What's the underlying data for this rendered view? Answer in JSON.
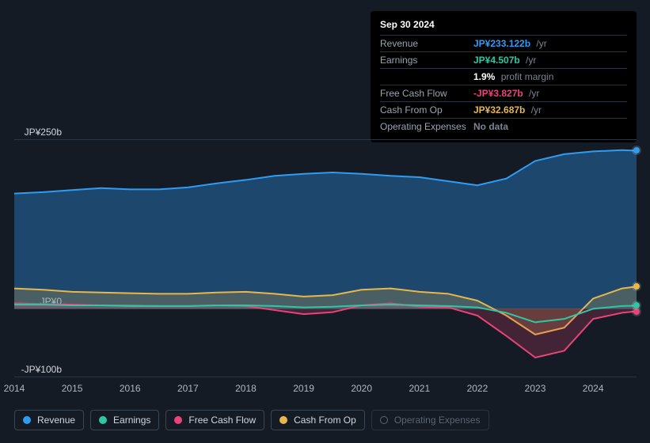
{
  "tooltip": {
    "date": "Sep 30 2024",
    "rows": [
      {
        "label": "Revenue",
        "value": "JP¥233.122b",
        "suffix": "/yr",
        "color": "#2f9cf4"
      },
      {
        "label": "Earnings",
        "value": "JP¥4.507b",
        "suffix": "/yr",
        "color": "#2ec7a6"
      },
      {
        "label": "",
        "value": "1.9%",
        "suffix": "profit margin",
        "color": "#ffffff"
      },
      {
        "label": "Free Cash Flow",
        "value": "-JP¥3.827b",
        "suffix": "/yr",
        "color": "#e8437a"
      },
      {
        "label": "Cash From Op",
        "value": "JP¥32.687b",
        "suffix": "/yr",
        "color": "#e8b74b"
      },
      {
        "label": "Operating Expenses",
        "value": "No data",
        "suffix": "",
        "color": "#7a8493"
      }
    ]
  },
  "chart": {
    "type": "area",
    "background": "#151b24",
    "grid_color": "#2c3642",
    "axis_font_size": 12,
    "axis_color": "#aeb6c2",
    "y_axis": {
      "min": -100,
      "max": 250,
      "ticks": [
        {
          "v": 250,
          "label": "JP¥250b"
        },
        {
          "v": 0,
          "label": "JP¥0"
        },
        {
          "v": -100,
          "label": "-JP¥100b"
        }
      ]
    },
    "x_axis": {
      "min": 2014,
      "max": 2024.75,
      "ticks": [
        2014,
        2015,
        2016,
        2017,
        2018,
        2019,
        2020,
        2021,
        2022,
        2023,
        2024
      ]
    },
    "series": [
      {
        "key": "revenue",
        "label": "Revenue",
        "color": "#2f9cf4",
        "fill_opacity": 0.35,
        "line_width": 2,
        "points": [
          [
            2014,
            170
          ],
          [
            2014.5,
            172
          ],
          [
            2015,
            175
          ],
          [
            2015.5,
            178
          ],
          [
            2016,
            176
          ],
          [
            2016.5,
            176
          ],
          [
            2017,
            179
          ],
          [
            2017.5,
            185
          ],
          [
            2018,
            190
          ],
          [
            2018.5,
            196
          ],
          [
            2019,
            199
          ],
          [
            2019.5,
            201
          ],
          [
            2020,
            199
          ],
          [
            2020.5,
            196
          ],
          [
            2021,
            194
          ],
          [
            2021.5,
            188
          ],
          [
            2022,
            182
          ],
          [
            2022.5,
            192
          ],
          [
            2023,
            218
          ],
          [
            2023.5,
            228
          ],
          [
            2024,
            232
          ],
          [
            2024.5,
            234
          ],
          [
            2024.75,
            233.122
          ]
        ]
      },
      {
        "key": "cash_from_op",
        "label": "Cash From Op",
        "color": "#e8b74b",
        "fill_opacity": 0.22,
        "line_width": 2,
        "points": [
          [
            2014,
            30
          ],
          [
            2014.5,
            28
          ],
          [
            2015,
            25
          ],
          [
            2015.5,
            24
          ],
          [
            2016,
            23
          ],
          [
            2016.5,
            22
          ],
          [
            2017,
            22
          ],
          [
            2017.5,
            24
          ],
          [
            2018,
            25
          ],
          [
            2018.5,
            22
          ],
          [
            2019,
            18
          ],
          [
            2019.5,
            20
          ],
          [
            2020,
            28
          ],
          [
            2020.5,
            30
          ],
          [
            2021,
            25
          ],
          [
            2021.5,
            22
          ],
          [
            2022,
            12
          ],
          [
            2022.5,
            -10
          ],
          [
            2023,
            -38
          ],
          [
            2023.5,
            -28
          ],
          [
            2024,
            15
          ],
          [
            2024.5,
            30
          ],
          [
            2024.75,
            32.687
          ]
        ]
      },
      {
        "key": "free_cash_flow",
        "label": "Free Cash Flow",
        "color": "#e8437a",
        "fill_opacity": 0.22,
        "line_width": 2,
        "points": [
          [
            2014,
            8
          ],
          [
            2014.5,
            7
          ],
          [
            2015,
            6
          ],
          [
            2015.5,
            5
          ],
          [
            2016,
            5
          ],
          [
            2016.5,
            4
          ],
          [
            2017,
            4
          ],
          [
            2017.5,
            5
          ],
          [
            2018,
            4
          ],
          [
            2018.5,
            -2
          ],
          [
            2019,
            -8
          ],
          [
            2019.5,
            -5
          ],
          [
            2020,
            5
          ],
          [
            2020.5,
            8
          ],
          [
            2021,
            3
          ],
          [
            2021.5,
            2
          ],
          [
            2022,
            -10
          ],
          [
            2022.5,
            -40
          ],
          [
            2023,
            -72
          ],
          [
            2023.5,
            -62
          ],
          [
            2024,
            -15
          ],
          [
            2024.5,
            -6
          ],
          [
            2024.75,
            -3.827
          ]
        ]
      },
      {
        "key": "earnings",
        "label": "Earnings",
        "color": "#2ec7a6",
        "fill_opacity": 0.0,
        "line_width": 2,
        "points": [
          [
            2014,
            6
          ],
          [
            2014.5,
            6
          ],
          [
            2015,
            5
          ],
          [
            2015.5,
            5
          ],
          [
            2016,
            4
          ],
          [
            2016.5,
            4
          ],
          [
            2017,
            4
          ],
          [
            2017.5,
            5
          ],
          [
            2018,
            5
          ],
          [
            2018.5,
            4
          ],
          [
            2019,
            2
          ],
          [
            2019.5,
            3
          ],
          [
            2020,
            5
          ],
          [
            2020.5,
            6
          ],
          [
            2021,
            5
          ],
          [
            2021.5,
            4
          ],
          [
            2022,
            2
          ],
          [
            2022.5,
            -6
          ],
          [
            2023,
            -20
          ],
          [
            2023.5,
            -15
          ],
          [
            2024,
            0
          ],
          [
            2024.5,
            4
          ],
          [
            2024.75,
            4.507
          ]
        ]
      }
    ],
    "inactive_series": [
      {
        "key": "operating_expenses",
        "label": "Operating Expenses",
        "color": "#5a6472"
      }
    ]
  },
  "legend_order": [
    "revenue",
    "earnings",
    "free_cash_flow",
    "cash_from_op",
    "operating_expenses"
  ]
}
